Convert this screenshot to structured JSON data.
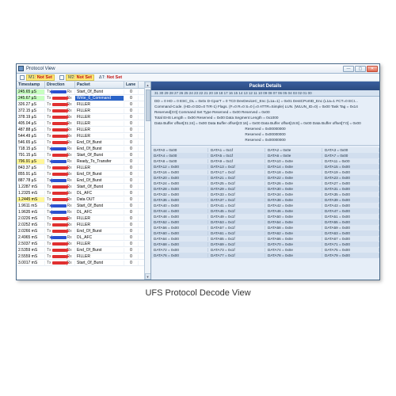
{
  "window": {
    "title": "Protocol View"
  },
  "filters": {
    "m1": {
      "label": "M1:",
      "value": "Not Set"
    },
    "m2": {
      "label": "M2:",
      "value": "Not Set"
    },
    "dt": {
      "label": "ΔT:",
      "value": "Not Set"
    }
  },
  "left": {
    "headers": {
      "ts": "Timestamp",
      "dir": "Direction",
      "pk": "Packet",
      "ln": "Lane"
    },
    "rows": [
      {
        "ts": "245.65 µS",
        "dir": "Tx",
        "pk": "Start_Of_Burst",
        "ln": "0",
        "hl": "green"
      },
      {
        "ts": "245.67 µS",
        "dir": "Rx",
        "pk": "Write_6_Command",
        "ln": "0",
        "hl": "green",
        "sel": true
      },
      {
        "ts": "326.27 µS",
        "dir": "Rx",
        "pk": "FILLER",
        "ln": "0"
      },
      {
        "ts": "372.15 µS",
        "dir": "Rx",
        "pk": "FILLER",
        "ln": "0"
      },
      {
        "ts": "378.19 µS",
        "dir": "Rx",
        "pk": "FILLER",
        "ln": "0"
      },
      {
        "ts": "405.04 µS",
        "dir": "Rx",
        "pk": "FILLER",
        "ln": "0"
      },
      {
        "ts": "487.88 µS",
        "dir": "Rx",
        "pk": "FILLER",
        "ln": "0"
      },
      {
        "ts": "544.49 µS",
        "dir": "Rx",
        "pk": "FILLER",
        "ln": "0"
      },
      {
        "ts": "546.65 µS",
        "dir": "Rx",
        "pk": "End_Of_Burst",
        "ln": "0"
      },
      {
        "ts": "718.15 µS",
        "dir": "Tx",
        "pk": "End_Of_Burst",
        "ln": "0"
      },
      {
        "ts": "791.15 µS",
        "dir": "Rx",
        "pk": "Start_Of_Burst",
        "ln": "0"
      },
      {
        "ts": "796.91 µS",
        "dir": "Tx",
        "pk": "Ready_To_Transfer",
        "ln": "0",
        "hl": "yellow"
      },
      {
        "ts": "843.37 µS",
        "dir": "Rx",
        "pk": "FILLER",
        "ln": "0"
      },
      {
        "ts": "855.91 µS",
        "dir": "Rx",
        "pk": "End_Of_Burst",
        "ln": "0"
      },
      {
        "ts": "887.78 µS",
        "dir": "Tx",
        "pk": "End_Of_Burst",
        "ln": "0"
      },
      {
        "ts": "1.2287 mS",
        "dir": "Rx",
        "pk": "Start_Of_Burst",
        "ln": "0"
      },
      {
        "ts": "1.2325 mS",
        "dir": "Rx",
        "pk": "DL_AFC",
        "ln": "0"
      },
      {
        "ts": "1.2445 mS",
        "dir": "Rx",
        "pk": "Data OUT",
        "ln": "0",
        "hl": "yellow"
      },
      {
        "ts": "1.9611 mS",
        "dir": "Tx",
        "pk": "Start_Of_Burst",
        "ln": "0"
      },
      {
        "ts": "1.9635 mS",
        "dir": "Tx",
        "pk": "DL_AFC",
        "ln": "0"
      },
      {
        "ts": "2.0226 mS",
        "dir": "Rx",
        "pk": "FILLER",
        "ln": "0"
      },
      {
        "ts": "2.0252 mS",
        "dir": "Rx",
        "pk": "FILLER",
        "ln": "0"
      },
      {
        "ts": "2.0266 mS",
        "dir": "Rx",
        "pk": "End_Of_Burst",
        "ln": "0"
      },
      {
        "ts": "2.4965 mS",
        "dir": "Tx",
        "pk": "DL_AFC",
        "ln": "0"
      },
      {
        "ts": "2.5037 mS",
        "dir": "Rx",
        "pk": "FILLER",
        "ln": "0"
      },
      {
        "ts": "2.5359 mS",
        "dir": "Rx",
        "pk": "End_Of_Burst",
        "ln": "0"
      },
      {
        "ts": "2.5559 mS",
        "dir": "Rx",
        "pk": "FILLER",
        "ln": "0"
      },
      {
        "ts": "3.0017 mS",
        "dir": "Rx",
        "pk": "Start_Of_Burst",
        "ln": "0"
      }
    ]
  },
  "right": {
    "title": "Packet Details",
    "ruler": "31  30  29  28  27  26  25  24  23  22  21  20  19  18  17  16  15  14  13  12  11  10  09  08  07  06  05  04  03  02  01  00",
    "header_lines": [
      "DD = 0    HD = 0    ESC_DL = 0x0x    D-CporT = 0    TC0        DevDeviceC_Enc (L1a=1) = 0x01    DestCPortID_Enc (L1a=1 FCT=0 ECI...",
      "Command-Code. (HD=0 DD=0 TrR-1)   Flags. (F=0 R=0 S=0 {=0 ATTR=Simple)                LUN. (WLUN_ID=0) = 0x00                           Task Tag = 0x14",
      "Reserved[3:0]             Command Set Type                                 Reserved = 0x00                                                      Reserved = 0x00",
      "Total EHS Length = 0x00                                   Reserved = 0x00                                              Data Segment Length = 0x1000",
      "Data Buffer offset[31:24] = 0x00           Data Buffer offset[23:16] = 0x00           Data Buffer offset[15:8] = 0x00           Data Buffer offset[7:0] = 0x00"
    ],
    "reserved_lines": [
      "Reserved = 0x00000000",
      "Reserved = 0x00000000",
      "Reserved = 0x00000000"
    ],
    "data_rows_count": 20
  },
  "caption": "UFS Protocol Decode View"
}
